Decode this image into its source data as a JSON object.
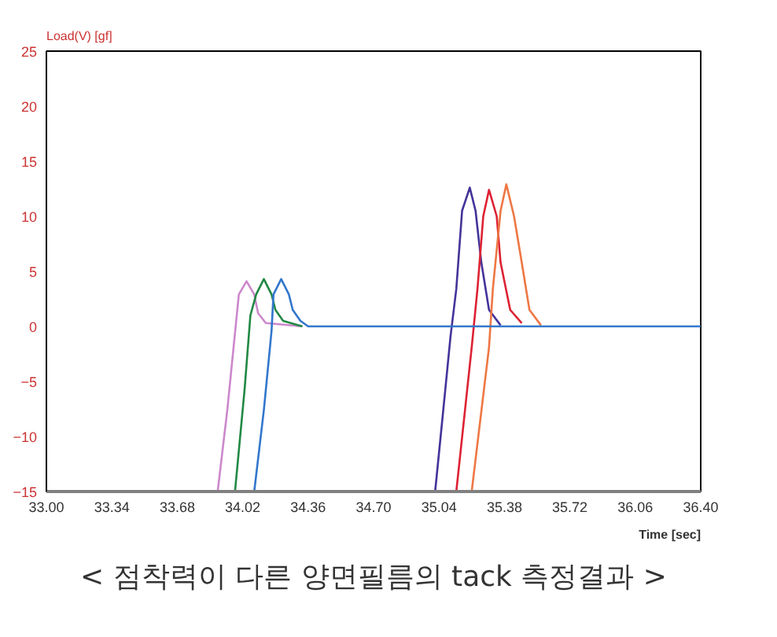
{
  "chart_data": {
    "type": "line",
    "xlabel": "Time [sec]",
    "ylabel": "Load(V) [gf]",
    "annotations": [
      "< 점착력이 다른 양면필름의 tack 측정결과 >"
    ],
    "xlim": [
      33,
      36.4
    ],
    "ylim": [
      -15,
      25
    ],
    "xticks": [
      {
        "value": 33,
        "label": "33.00"
      },
      33.34,
      33.68,
      34.02,
      34.36,
      {
        "value": 34.7,
        "label": "34.70"
      },
      35.04,
      35.38,
      35.72,
      36.06,
      {
        "value": 36.4,
        "label": "36.40"
      }
    ],
    "yticks": [
      -15,
      -10,
      -5,
      0,
      5,
      10,
      15,
      20,
      25
    ],
    "grid": false,
    "marker": "none",
    "line_style": "solid",
    "series": [
      {
        "color": "#cc88cc",
        "x": [
          33.89,
          33.94,
          34.0,
          34.04,
          34.08,
          34.1,
          34.14,
          34.33
        ],
        "values": [
          -15,
          -7.6,
          2.9,
          4.1,
          2.9,
          1.2,
          0.3,
          0
        ]
      },
      {
        "color": "#228844",
        "x": [
          33.98,
          34.03,
          34.06,
          34.09,
          34.13,
          34.17,
          34.19,
          34.23,
          34.33
        ],
        "values": [
          -15,
          -5.7,
          1.0,
          2.9,
          4.3,
          2.9,
          1.5,
          0.5,
          0
        ]
      },
      {
        "color": "#443399",
        "x": [
          35.02,
          35.06,
          35.1,
          35.13,
          35.16,
          35.2,
          35.23,
          35.26,
          35.3,
          35.36
        ],
        "values": [
          -15,
          -8,
          -0.9,
          3.4,
          10.5,
          12.6,
          10.5,
          5.8,
          1.5,
          0.1
        ]
      },
      {
        "color": "#dd2233",
        "x": [
          35.13,
          35.21,
          35.24,
          35.27,
          35.3,
          35.34,
          35.36,
          35.41,
          35.47
        ],
        "values": [
          -15,
          -1.9,
          3.4,
          10,
          12.4,
          10,
          5.8,
          1.5,
          0.3
        ]
      },
      {
        "color": "#ee7744",
        "x": [
          35.21,
          35.3,
          35.32,
          35.36,
          35.39,
          35.43,
          35.47,
          35.51,
          35.57
        ],
        "values": [
          -15,
          -1.9,
          3.4,
          10.5,
          12.9,
          10,
          5.8,
          1.5,
          0.1
        ]
      },
      {
        "color": "#3377cc",
        "x": [
          34.08,
          34.13,
          34.17,
          34.18,
          34.22,
          34.26,
          34.28,
          34.32,
          34.36,
          36.4
        ],
        "values": [
          -15,
          -7.6,
          -0.4,
          2.9,
          4.3,
          2.9,
          1.5,
          0.5,
          0,
          0
        ]
      }
    ]
  }
}
